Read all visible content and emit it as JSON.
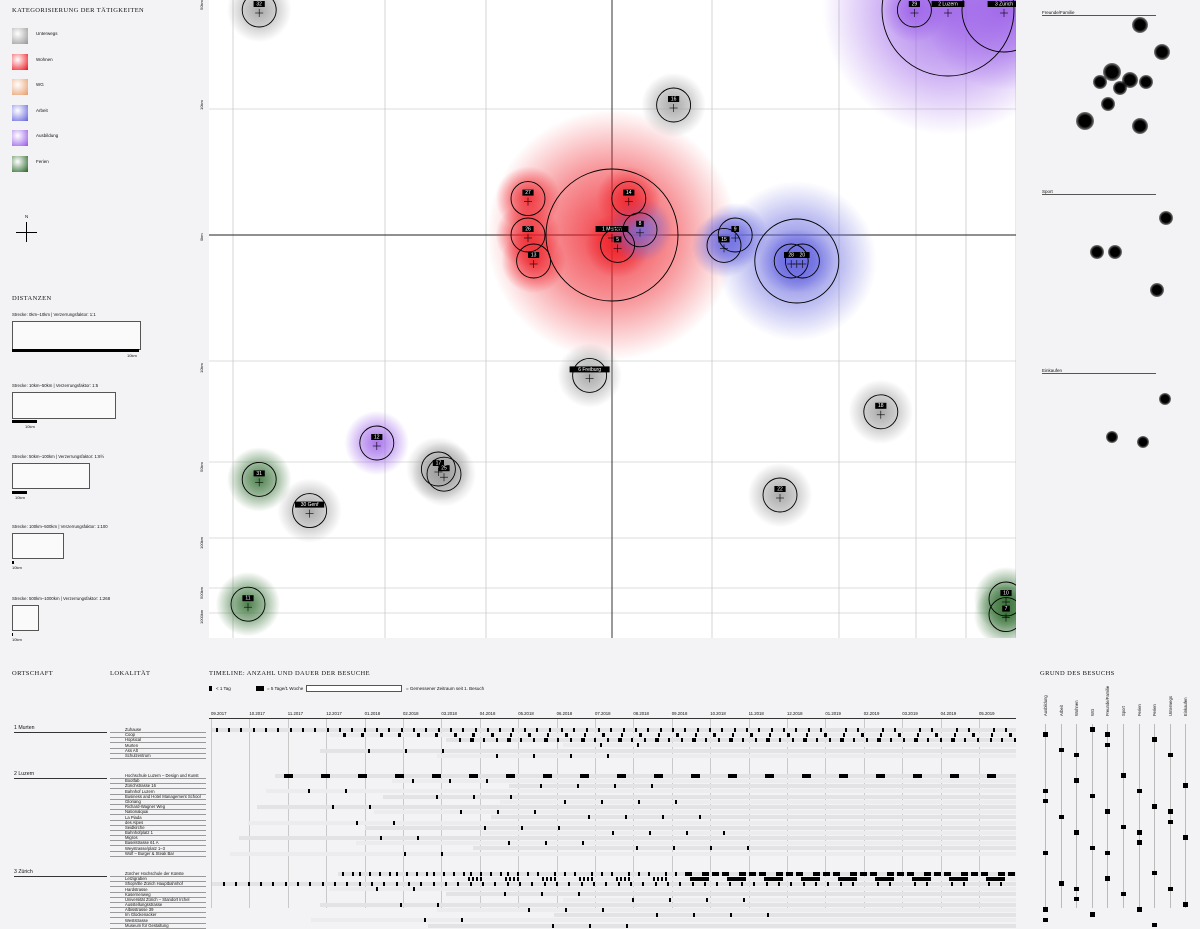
{
  "legend": {
    "title": "Kategorisierung der Tätigkeiten",
    "items": [
      {
        "label": "Unterwegs",
        "color": "#9a9a9a"
      },
      {
        "label": "Wohnen",
        "color": "#ee1c25"
      },
      {
        "label": "WG",
        "color": "#e8a070"
      },
      {
        "label": "Arbeit",
        "color": "#6a6ae0"
      },
      {
        "label": "Ausbildung",
        "color": "#9a5ee8"
      },
      {
        "label": "Ferien",
        "color": "#2e6b2e"
      }
    ],
    "compass": "N"
  },
  "distances": {
    "title": "Distanzen",
    "items": [
      {
        "caption": "Strecke: 0km–10km | Verzerrungsfaktor: 1:1",
        "bar_label": "10km"
      },
      {
        "caption": "Strecke: 10km–50km | Verzerrungsfaktor: 1:5",
        "bar_label": "10km"
      },
      {
        "caption": "Strecke: 50km–100km | Verzerrungsfaktor: 1:8½",
        "bar_label": "10km"
      },
      {
        "caption": "Strecke: 100km–500km | Verzerrungsfaktor: 1:100",
        "bar_label": "10km"
      },
      {
        "caption": "Strecke: 500km–1000km | Verzerrungsfaktor: 1:268",
        "bar_label": "10km"
      }
    ]
  },
  "chart_data": {
    "type": "scatter",
    "axis_labels": [
      "50km",
      "10km",
      "0km",
      "10km",
      "50km",
      "100km",
      "500km",
      "1000km"
    ],
    "points": [
      {
        "id": "1 Murten",
        "x": 0,
        "y": 0,
        "category": "Wohnen",
        "size": 3
      },
      {
        "id": "2 Luzern",
        "x": 60,
        "y": 60,
        "category": "Ausbildung",
        "size": 3
      },
      {
        "id": "3 Zürich",
        "x": 70,
        "y": 95,
        "category": "Ausbildung",
        "size": 2
      },
      {
        "id": "4 Bern",
        "x": 33,
        "y": -5,
        "category": "Arbeit",
        "size": 2
      },
      {
        "id": "5",
        "x": 1,
        "y": -2,
        "category": "Wohnen",
        "size": 1
      },
      {
        "id": "6 Freiburg",
        "x": -4,
        "y": -27,
        "category": "Unterwegs",
        "size": 1
      },
      {
        "id": "7",
        "x": 78,
        "y": -73,
        "category": "Ferien",
        "size": 1
      },
      {
        "id": "8",
        "x": 5,
        "y": 1,
        "category": "Arbeit",
        "size": 1
      },
      {
        "id": "9",
        "x": 22,
        "y": 0,
        "category": "Arbeit",
        "size": 1
      },
      {
        "id": "10",
        "x": 74,
        "y": -70,
        "category": "Ferien",
        "size": 1
      },
      {
        "id": "11",
        "x": -65,
        "y": -71,
        "category": "Ferien",
        "size": 1
      },
      {
        "id": "12",
        "x": -42,
        "y": -40,
        "category": "Ausbildung",
        "size": 1
      },
      {
        "id": "13",
        "x": -14,
        "y": -5,
        "category": "Wohnen",
        "size": 1
      },
      {
        "id": "14",
        "x": 3,
        "y": 7,
        "category": "Wohnen",
        "size": 1
      },
      {
        "id": "15",
        "x": 20,
        "y": -2,
        "category": "Arbeit",
        "size": 1
      },
      {
        "id": "16",
        "x": 11,
        "y": 25,
        "category": "Unterwegs",
        "size": 1
      },
      {
        "id": "17",
        "x": -31,
        "y": -45,
        "category": "Unterwegs",
        "size": 1
      },
      {
        "id": "18",
        "x": 48,
        "y": -34,
        "category": "Unterwegs",
        "size": 1
      },
      {
        "id": "20",
        "x": 34,
        "y": -5,
        "category": "Arbeit",
        "size": 1
      },
      {
        "id": "22",
        "x": 30,
        "y": -50,
        "category": "Unterwegs",
        "size": 1
      },
      {
        "id": "25",
        "x": -30,
        "y": -46,
        "category": "Unterwegs",
        "size": 1
      },
      {
        "id": "26",
        "x": -15,
        "y": 0,
        "category": "Wohnen",
        "size": 1
      },
      {
        "id": "27",
        "x": -15,
        "y": 7,
        "category": "Wohnen",
        "size": 1
      },
      {
        "id": "28",
        "x": 32,
        "y": -5,
        "category": "Arbeit",
        "size": 1
      },
      {
        "id": "29",
        "x": 54,
        "y": 65,
        "category": "Ausbildung",
        "size": 1
      },
      {
        "id": "30 Genf",
        "x": -54,
        "y": -53,
        "category": "Unterwegs",
        "size": 1
      },
      {
        "id": "31",
        "x": -63,
        "y": -47,
        "category": "Ferien",
        "size": 1
      },
      {
        "id": "32",
        "x": -63,
        "y": 70,
        "category": "Unterwegs",
        "size": 1
      }
    ],
    "grid": true
  },
  "reasons_side": {
    "items": [
      {
        "label": "Freunde/Familie"
      },
      {
        "label": "Sport"
      },
      {
        "label": "Einkaufen"
      }
    ]
  },
  "bottom": {
    "ortschaft_title": "Ortschaft",
    "lokalitaet_title": "Lokalität",
    "timeline_title": "Timeline: Anzahl und Dauer der Besuche",
    "timeline_legend": [
      "< 1 Tag",
      "= 5 Tage/1 Woche",
      "= Gemessener Zeitraum seit 1. Besuch"
    ],
    "reasons_title": "Grund des Besuchs",
    "reason_headers": [
      "Ausbildung",
      "Arbeit",
      "Wohnen",
      "WG",
      "Freunde/Familie",
      "Sport",
      "Ferien",
      "Ferien",
      "Unterwegs",
      "Einkaufen"
    ],
    "months": [
      "09.2017",
      "10.2017",
      "11.2017",
      "12.2017",
      "01.2018",
      "02.2018",
      "03.2018",
      "04.2018",
      "05.2018",
      "06.2018",
      "07.2018",
      "08.2018",
      "09.2018",
      "10.2018",
      "11.2018",
      "12.2018",
      "01.2019",
      "02.2019",
      "03.2019",
      "04.2019",
      "05.2019"
    ],
    "places": [
      {
        "name": "1 Murten",
        "locations": [
          "Zuhause",
          "Coop",
          "Hopsical",
          "Murten",
          "Ass Alt",
          "Schulzentrum"
        ]
      },
      {
        "name": "2 Luzern",
        "locations": [
          "Hochschule Luzern – Design und Kunst",
          "Bootfab",
          "Zürichstrasse 16",
          "Bahnhof Luzern",
          "Business and Hotel Management School",
          "Gloriang",
          "Richard-Wagner Weg",
          "Nationalquai",
          "La Piada",
          "des Alpes",
          "Seidkirche",
          "Bahnhofplatz 1",
          "Migros",
          "Baselstrasse 61 A",
          "Weystrasse/platz 1–3",
          "Wolf – Burger & Steak Bar"
        ]
      },
      {
        "name": "3 Zürich",
        "locations": [
          "Zürcher Hochschule der Künste",
          "Letzigraben",
          "ShopVille Zürich Hauptbahnhof",
          "Hardstrasse",
          "Kasernenweg",
          "Universität Zürich – Standort Irchel",
          "Ausstellungsstrasse",
          "Albisstrasse 39",
          "Im Glockenacker",
          "Weststrasse",
          "Museum für Gestaltung"
        ]
      }
    ]
  }
}
